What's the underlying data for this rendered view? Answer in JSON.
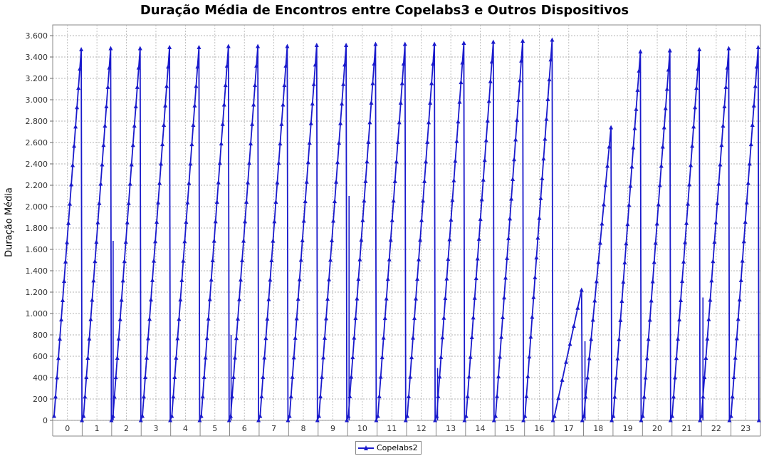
{
  "chart_data": {
    "type": "line",
    "title": "Duração Média de Encontros entre Copelabs3 e Outros Dispositivos",
    "xlabel": "",
    "ylabel": "Duração Média",
    "categories": [
      "0",
      "1",
      "2",
      "3",
      "4",
      "5",
      "6",
      "7",
      "8",
      "9",
      "10",
      "11",
      "12",
      "13",
      "14",
      "15",
      "16",
      "17",
      "18",
      "19",
      "20",
      "21",
      "22",
      "23"
    ],
    "ylim": [
      0,
      3700
    ],
    "yticks": [
      0,
      200,
      400,
      600,
      800,
      1000,
      1200,
      1400,
      1600,
      1800,
      2000,
      2200,
      2400,
      2600,
      2800,
      3000,
      3200,
      3400,
      3600
    ],
    "ytick_labels": [
      "0",
      "200",
      "400",
      "600",
      "800",
      "1.000",
      "1.200",
      "1.400",
      "1.600",
      "1.800",
      "2.000",
      "2.200",
      "2.400",
      "2.600",
      "2.800",
      "3.000",
      "3.200",
      "3.400",
      "3.600"
    ],
    "grid": true,
    "legend_position": "bottom-center",
    "series": [
      {
        "name": "Copelabs2",
        "color": "#1a1acc",
        "marker": "triangle",
        "ramp_peaks": [
          3470,
          3480,
          3480,
          3490,
          3490,
          3500,
          3500,
          3500,
          3510,
          3510,
          3520,
          3520,
          3520,
          3530,
          3540,
          3550,
          3560,
          1220,
          2740,
          3450,
          3460,
          3470,
          3480,
          3490,
          3510
        ],
        "ramp_step": 185,
        "notes_dips": [
          [
            2,
            1680
          ],
          [
            6,
            800
          ],
          [
            10,
            2100
          ],
          [
            13,
            490
          ],
          [
            18,
            740
          ],
          [
            22,
            1150
          ]
        ]
      }
    ]
  }
}
